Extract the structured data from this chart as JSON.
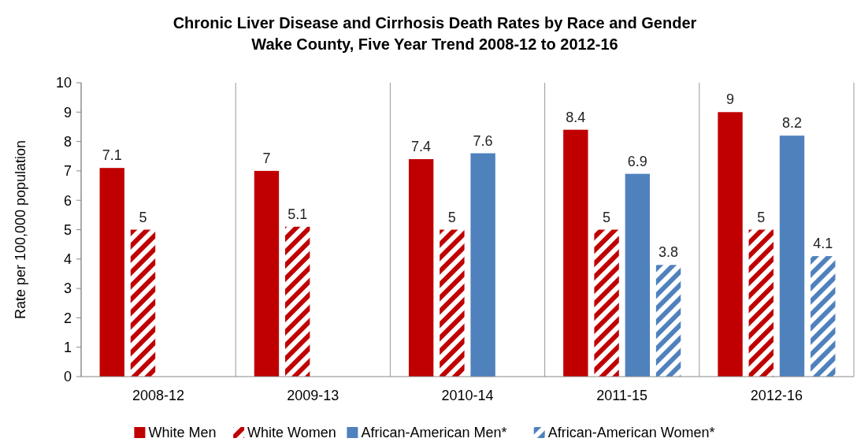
{
  "chart_data": {
    "type": "bar",
    "title": "Chronic Liver Disease and Cirrhosis Death Rates by Race and Gender",
    "subtitle": "Wake County, Five Year Trend 2008-12 to 2012-16",
    "ylabel": "Rate per 100,000 population",
    "categories": [
      "2008-12",
      "2009-13",
      "2010-14",
      "2011-15",
      "2012-16"
    ],
    "series": [
      {
        "name": "White Men",
        "color": "#c00000",
        "values": [
          7.1,
          7,
          7.4,
          8.4,
          9
        ]
      },
      {
        "name": "White Women",
        "color": "#c00000",
        "line_style": "dashed",
        "values": [
          5,
          5.1,
          5,
          5,
          5
        ]
      },
      {
        "name": "African-American Men*",
        "color": "#4f81bd",
        "values": [
          null,
          null,
          7.6,
          6.9,
          8.2
        ]
      },
      {
        "name": "African-American Women*",
        "color": "#4f81bd",
        "line_style": "dashed",
        "values": [
          null,
          null,
          null,
          3.8,
          4.1
        ]
      }
    ],
    "ylim": [
      0,
      10
    ],
    "yticks": [
      0,
      1,
      2,
      3,
      4,
      5,
      6,
      7,
      8,
      9,
      10
    ],
    "grid": "x",
    "legend": "bottom",
    "data_labels": true
  }
}
